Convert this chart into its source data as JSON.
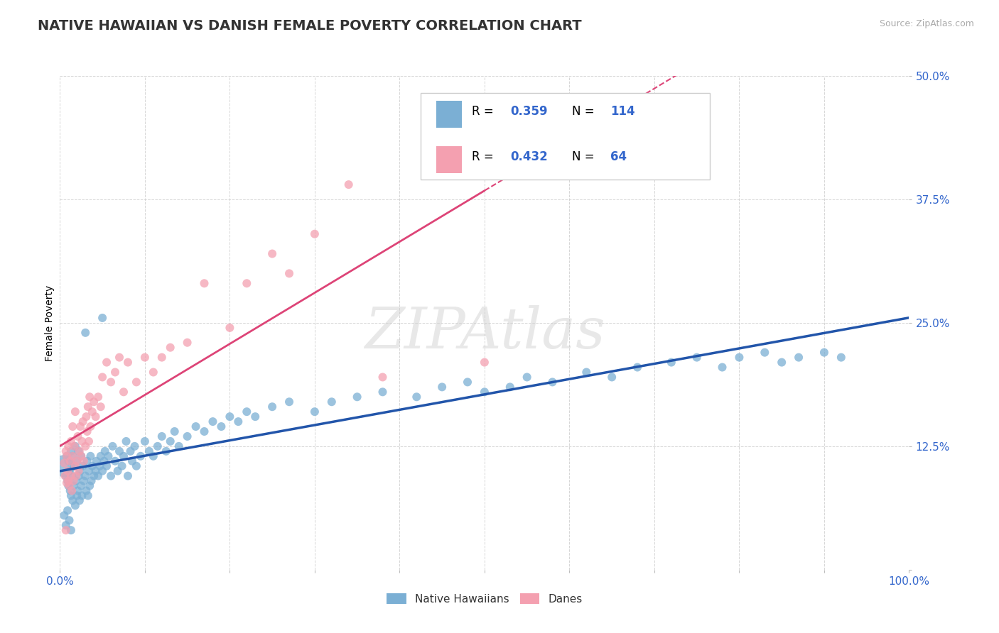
{
  "title": "NATIVE HAWAIIAN VS DANISH FEMALE POVERTY CORRELATION CHART",
  "source": "Source: ZipAtlas.com",
  "ylabel": "Female Poverty",
  "xlim": [
    0,
    1.0
  ],
  "ylim": [
    0,
    0.5
  ],
  "xticks": [
    0.0,
    0.1,
    0.2,
    0.3,
    0.4,
    0.5,
    0.6,
    0.7,
    0.8,
    0.9,
    1.0
  ],
  "xticklabels": [
    "0.0%",
    "",
    "",
    "",
    "",
    "",
    "",
    "",
    "",
    "",
    "100.0%"
  ],
  "yticks": [
    0.0,
    0.125,
    0.25,
    0.375,
    0.5
  ],
  "yticklabels": [
    "",
    "12.5%",
    "25.0%",
    "37.5%",
    "50.0%"
  ],
  "grid_color": "#cccccc",
  "blue_color": "#7BAFD4",
  "pink_color": "#F4A0B0",
  "blue_line_color": "#2255AA",
  "pink_line_color": "#DD4477",
  "R_blue": 0.359,
  "N_blue": 114,
  "R_pink": 0.432,
  "N_pink": 64,
  "legend_label_blue": "Native Hawaiians",
  "legend_label_pink": "Danes",
  "watermark": "ZIPAtlas",
  "title_fontsize": 14,
  "axis_label_fontsize": 10,
  "tick_fontsize": 11,
  "blue_scatter_x": [
    0.005,
    0.007,
    0.008,
    0.009,
    0.01,
    0.01,
    0.011,
    0.012,
    0.013,
    0.013,
    0.014,
    0.015,
    0.015,
    0.016,
    0.017,
    0.018,
    0.018,
    0.019,
    0.02,
    0.02,
    0.021,
    0.022,
    0.022,
    0.023,
    0.024,
    0.025,
    0.025,
    0.026,
    0.027,
    0.028,
    0.03,
    0.031,
    0.032,
    0.033,
    0.034,
    0.035,
    0.036,
    0.037,
    0.038,
    0.04,
    0.042,
    0.043,
    0.045,
    0.047,
    0.048,
    0.05,
    0.052,
    0.053,
    0.055,
    0.057,
    0.06,
    0.062,
    0.065,
    0.068,
    0.07,
    0.073,
    0.075,
    0.078,
    0.08,
    0.083,
    0.085,
    0.088,
    0.09,
    0.095,
    0.1,
    0.105,
    0.11,
    0.115,
    0.12,
    0.125,
    0.13,
    0.135,
    0.14,
    0.15,
    0.16,
    0.17,
    0.18,
    0.19,
    0.2,
    0.21,
    0.22,
    0.23,
    0.25,
    0.27,
    0.3,
    0.32,
    0.35,
    0.38,
    0.42,
    0.45,
    0.48,
    0.5,
    0.53,
    0.55,
    0.58,
    0.62,
    0.65,
    0.68,
    0.72,
    0.75,
    0.78,
    0.8,
    0.83,
    0.85,
    0.87,
    0.9,
    0.92,
    0.005,
    0.007,
    0.009,
    0.011,
    0.013,
    0.03,
    0.05
  ],
  "blue_scatter_y": [
    0.105,
    0.095,
    0.115,
    0.09,
    0.085,
    0.11,
    0.1,
    0.08,
    0.12,
    0.075,
    0.095,
    0.07,
    0.115,
    0.085,
    0.105,
    0.065,
    0.125,
    0.09,
    0.075,
    0.11,
    0.08,
    0.095,
    0.12,
    0.07,
    0.1,
    0.085,
    0.115,
    0.075,
    0.105,
    0.09,
    0.095,
    0.08,
    0.11,
    0.075,
    0.1,
    0.085,
    0.115,
    0.09,
    0.105,
    0.095,
    0.1,
    0.11,
    0.095,
    0.105,
    0.115,
    0.1,
    0.11,
    0.12,
    0.105,
    0.115,
    0.095,
    0.125,
    0.11,
    0.1,
    0.12,
    0.105,
    0.115,
    0.13,
    0.095,
    0.12,
    0.11,
    0.125,
    0.105,
    0.115,
    0.13,
    0.12,
    0.115,
    0.125,
    0.135,
    0.12,
    0.13,
    0.14,
    0.125,
    0.135,
    0.145,
    0.14,
    0.15,
    0.145,
    0.155,
    0.15,
    0.16,
    0.155,
    0.165,
    0.17,
    0.16,
    0.17,
    0.175,
    0.18,
    0.175,
    0.185,
    0.19,
    0.18,
    0.185,
    0.195,
    0.19,
    0.2,
    0.195,
    0.205,
    0.21,
    0.215,
    0.205,
    0.215,
    0.22,
    0.21,
    0.215,
    0.22,
    0.215,
    0.055,
    0.045,
    0.06,
    0.05,
    0.04,
    0.24,
    0.255
  ],
  "blue_scatter_s": [
    200,
    30,
    30,
    30,
    30,
    30,
    30,
    30,
    30,
    30,
    30,
    30,
    30,
    30,
    30,
    30,
    30,
    30,
    30,
    30,
    30,
    30,
    30,
    30,
    30,
    30,
    30,
    30,
    30,
    30,
    30,
    30,
    30,
    30,
    30,
    30,
    30,
    30,
    30,
    30,
    30,
    30,
    30,
    30,
    30,
    30,
    30,
    30,
    30,
    30,
    30,
    30,
    30,
    30,
    30,
    30,
    30,
    30,
    30,
    30,
    30,
    30,
    30,
    30,
    30,
    30,
    30,
    30,
    30,
    30,
    30,
    30,
    30,
    30,
    30,
    30,
    30,
    30,
    30,
    30,
    30,
    30,
    30,
    30,
    30,
    30,
    30,
    30,
    30,
    30,
    30,
    30,
    30,
    30,
    30,
    30,
    30,
    30,
    30,
    30,
    30,
    30,
    30,
    30,
    30,
    30,
    30,
    30,
    30,
    30,
    30,
    30,
    30,
    30
  ],
  "pink_scatter_x": [
    0.005,
    0.006,
    0.007,
    0.008,
    0.008,
    0.009,
    0.01,
    0.01,
    0.011,
    0.012,
    0.013,
    0.013,
    0.014,
    0.015,
    0.015,
    0.016,
    0.017,
    0.018,
    0.018,
    0.019,
    0.02,
    0.021,
    0.022,
    0.023,
    0.024,
    0.025,
    0.026,
    0.027,
    0.028,
    0.03,
    0.031,
    0.032,
    0.033,
    0.034,
    0.035,
    0.036,
    0.038,
    0.04,
    0.042,
    0.045,
    0.048,
    0.05,
    0.055,
    0.06,
    0.065,
    0.07,
    0.075,
    0.08,
    0.09,
    0.1,
    0.11,
    0.12,
    0.13,
    0.15,
    0.17,
    0.2,
    0.22,
    0.25,
    0.27,
    0.3,
    0.34,
    0.38,
    0.007,
    0.5
  ],
  "pink_scatter_y": [
    0.108,
    0.095,
    0.12,
    0.088,
    0.115,
    0.1,
    0.09,
    0.125,
    0.085,
    0.11,
    0.095,
    0.13,
    0.08,
    0.115,
    0.145,
    0.09,
    0.125,
    0.105,
    0.16,
    0.095,
    0.11,
    0.135,
    0.1,
    0.12,
    0.145,
    0.115,
    0.13,
    0.15,
    0.11,
    0.125,
    0.155,
    0.14,
    0.165,
    0.13,
    0.175,
    0.145,
    0.16,
    0.17,
    0.155,
    0.175,
    0.165,
    0.195,
    0.21,
    0.19,
    0.2,
    0.215,
    0.18,
    0.21,
    0.19,
    0.215,
    0.2,
    0.215,
    0.225,
    0.23,
    0.29,
    0.245,
    0.29,
    0.32,
    0.3,
    0.34,
    0.39,
    0.195,
    0.04,
    0.21
  ],
  "pink_scatter_s": [
    30,
    30,
    30,
    30,
    30,
    30,
    30,
    30,
    30,
    30,
    30,
    30,
    30,
    30,
    30,
    30,
    30,
    30,
    30,
    30,
    30,
    30,
    30,
    30,
    30,
    30,
    30,
    30,
    30,
    30,
    30,
    30,
    30,
    30,
    30,
    30,
    30,
    30,
    30,
    30,
    30,
    30,
    30,
    30,
    30,
    30,
    30,
    30,
    30,
    30,
    30,
    30,
    30,
    30,
    30,
    30,
    30,
    30,
    30,
    30,
    30,
    30,
    30,
    30
  ]
}
